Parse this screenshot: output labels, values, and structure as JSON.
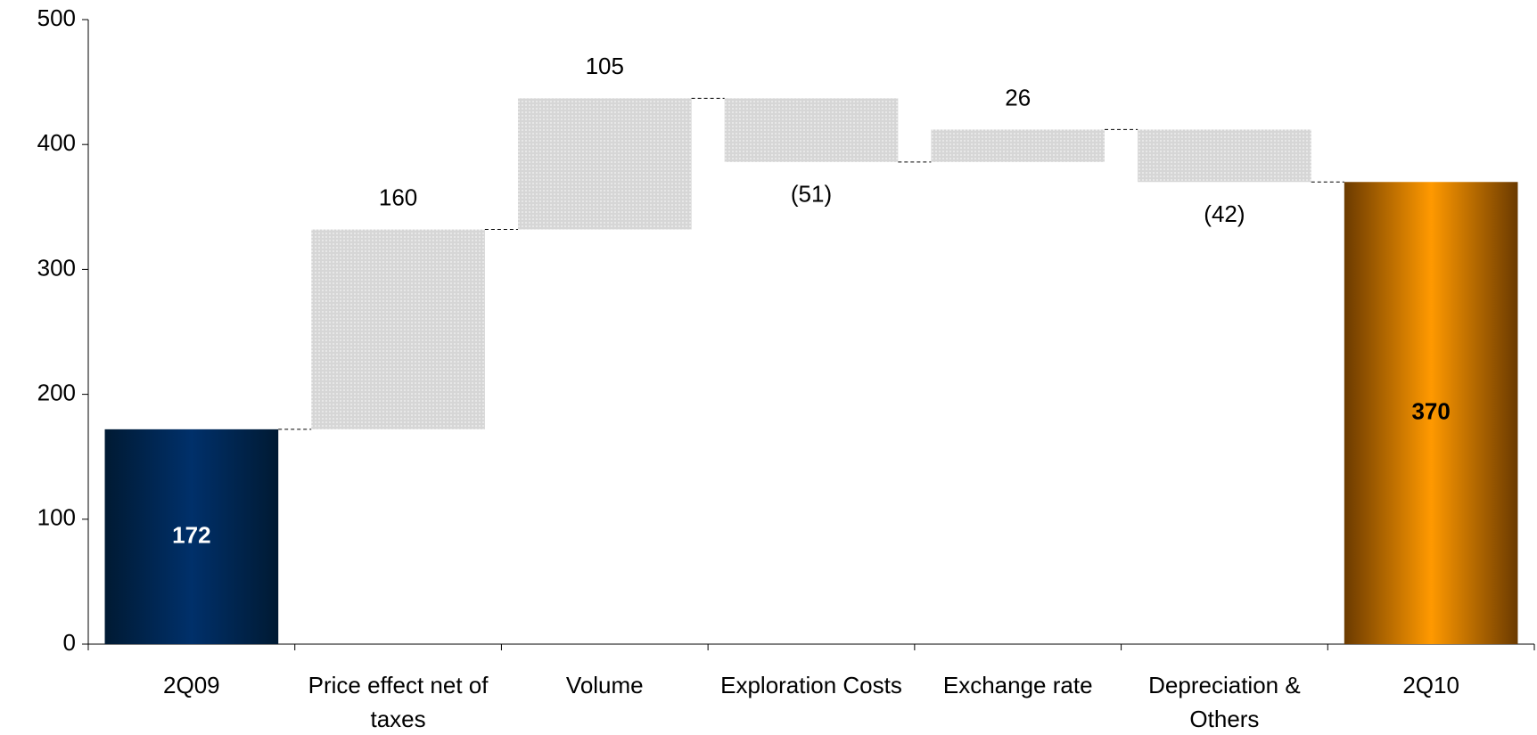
{
  "chart_data": {
    "type": "waterfall",
    "categories": [
      "2Q09",
      "Price effect net of taxes",
      "Volume",
      "Exploration Costs",
      "Exchange rate",
      "Depreciation & Others",
      "2Q10"
    ],
    "values": [
      172,
      160,
      105,
      -51,
      26,
      -42,
      370
    ],
    "value_labels": [
      "172",
      "160",
      "105",
      "(51)",
      "26",
      "(42)",
      "370"
    ],
    "total_colors": [
      "#00306a",
      "#ff9900"
    ],
    "delta_color": "#d6d6d6",
    "ylim": [
      0,
      500
    ],
    "yticks": [
      0,
      100,
      200,
      300,
      400,
      500
    ]
  }
}
